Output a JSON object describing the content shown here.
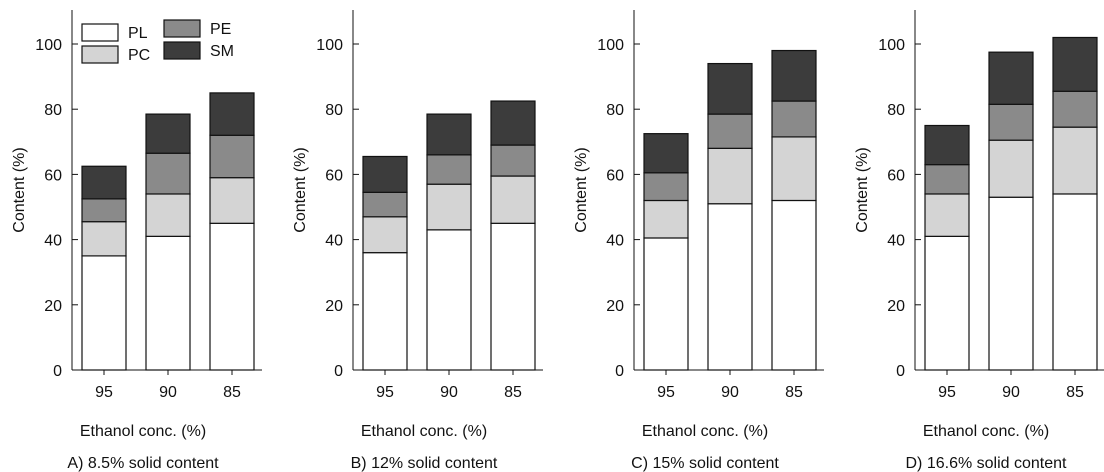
{
  "colors": {
    "PL": "#ffffff",
    "PC": "#d4d4d4",
    "PE": "#8a8a8a",
    "SM": "#3c3c3c",
    "stroke": "#111111"
  },
  "legend": [
    {
      "name": "PL",
      "color": "#ffffff"
    },
    {
      "name": "PE",
      "color": "#8a8a8a"
    },
    {
      "name": "PC",
      "color": "#d4d4d4"
    },
    {
      "name": "SM",
      "color": "#3c3c3c"
    }
  ],
  "chart_data": [
    {
      "type": "bar",
      "stacked": true,
      "title": "A) 8.5% solid content",
      "xlabel": "Ethanol conc. (%)",
      "ylabel": "Content (%)",
      "categories": [
        "95",
        "90",
        "85"
      ],
      "ylim": [
        0,
        110
      ],
      "yticks": [
        0,
        20,
        40,
        60,
        80,
        100
      ],
      "legend_position": "top-left",
      "series": [
        {
          "name": "PL",
          "values": [
            35,
            41,
            45
          ]
        },
        {
          "name": "PC",
          "values": [
            10.5,
            13,
            14
          ]
        },
        {
          "name": "PE",
          "values": [
            7,
            12.5,
            13
          ]
        },
        {
          "name": "SM",
          "values": [
            10,
            12,
            13
          ]
        }
      ]
    },
    {
      "type": "bar",
      "stacked": true,
      "title": "B) 12% solid content",
      "xlabel": "Ethanol conc. (%)",
      "ylabel": "Content (%)",
      "categories": [
        "95",
        "90",
        "85"
      ],
      "ylim": [
        0,
        110
      ],
      "yticks": [
        0,
        20,
        40,
        60,
        80,
        100
      ],
      "series": [
        {
          "name": "PL",
          "values": [
            36,
            43,
            45
          ]
        },
        {
          "name": "PC",
          "values": [
            11,
            14,
            14.5
          ]
        },
        {
          "name": "PE",
          "values": [
            7.5,
            9,
            9.5
          ]
        },
        {
          "name": "SM",
          "values": [
            11,
            12.5,
            13.5
          ]
        }
      ]
    },
    {
      "type": "bar",
      "stacked": true,
      "title": "C) 15% solid content",
      "xlabel": "Ethanol conc. (%)",
      "ylabel": "Content (%)",
      "categories": [
        "95",
        "90",
        "85"
      ],
      "ylim": [
        0,
        110
      ],
      "yticks": [
        0,
        20,
        40,
        60,
        80,
        100
      ],
      "series": [
        {
          "name": "PL",
          "values": [
            40.5,
            51,
            52
          ]
        },
        {
          "name": "PC",
          "values": [
            11.5,
            17,
            19.5
          ]
        },
        {
          "name": "PE",
          "values": [
            8.5,
            10.5,
            11
          ]
        },
        {
          "name": "SM",
          "values": [
            12,
            15.5,
            15.5
          ]
        }
      ]
    },
    {
      "type": "bar",
      "stacked": true,
      "title": "D) 16.6% solid content",
      "xlabel": "Ethanol conc. (%)",
      "ylabel": "Content (%)",
      "categories": [
        "95",
        "90",
        "85"
      ],
      "ylim": [
        0,
        110
      ],
      "yticks": [
        0,
        20,
        40,
        60,
        80,
        100
      ],
      "series": [
        {
          "name": "PL",
          "values": [
            41,
            53,
            54
          ]
        },
        {
          "name": "PC",
          "values": [
            13,
            17.5,
            20.5
          ]
        },
        {
          "name": "PE",
          "values": [
            9,
            11,
            11
          ]
        },
        {
          "name": "SM",
          "values": [
            12,
            16,
            16.5
          ]
        }
      ]
    }
  ]
}
